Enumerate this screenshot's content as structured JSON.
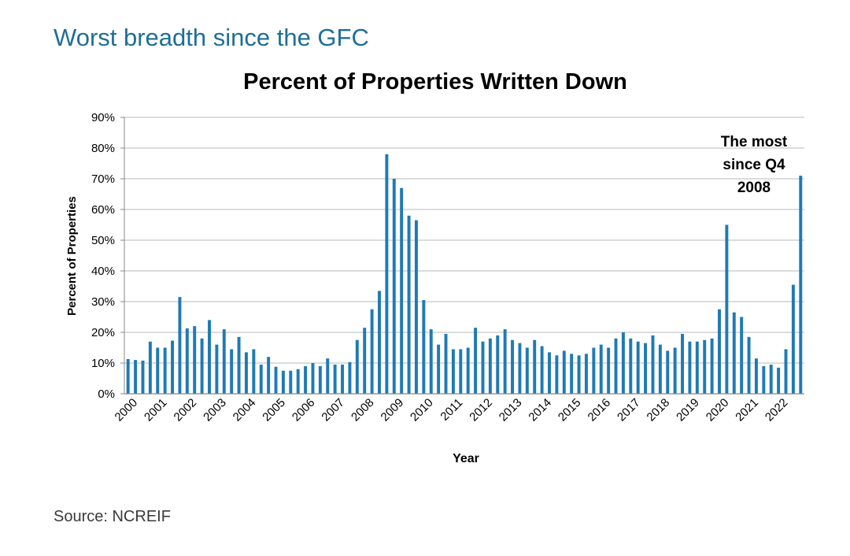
{
  "page": {
    "headline": "Worst breadth since the GFC",
    "source": "Source: NCREIF",
    "bar_color": "#1f7ab5",
    "headline_color": "#1f6e96"
  },
  "chart_data": {
    "type": "bar",
    "title": "Percent of Properties Written Down",
    "xlabel": "Year",
    "ylabel": "Percent of Properties",
    "ylim": [
      0,
      90
    ],
    "yticks": [
      "0%",
      "10%",
      "20%",
      "30%",
      "40%",
      "50%",
      "60%",
      "70%",
      "80%",
      "90%"
    ],
    "year_labels": [
      "2000",
      "2001",
      "2002",
      "2003",
      "2004",
      "2005",
      "2006",
      "2007",
      "2008",
      "2009",
      "2010",
      "2011",
      "2012",
      "2013",
      "2014",
      "2015",
      "2016",
      "2017",
      "2018",
      "2019",
      "2020",
      "2021",
      "2022"
    ],
    "annotation": [
      "The most",
      "since Q4",
      "2008"
    ],
    "series": [
      {
        "name": "Percent of Properties Written Down",
        "values": [
          11.3,
          11,
          10.8,
          17,
          15,
          15,
          17.3,
          31.5,
          21.3,
          22,
          18,
          24,
          16,
          21,
          14.5,
          18.5,
          13.5,
          14.5,
          9.5,
          12,
          8.8,
          7.5,
          7.5,
          8,
          9,
          10,
          9,
          11.5,
          9.5,
          9.5,
          10.3,
          17.5,
          21.5,
          27.5,
          33.5,
          78,
          70,
          67,
          58,
          56.5,
          30.5,
          21,
          16,
          19.5,
          14.5,
          14.5,
          15,
          21.5,
          17,
          18,
          19,
          21,
          17.5,
          16.5,
          15,
          17.5,
          15.5,
          13.5,
          12.5,
          14,
          13,
          12.5,
          13,
          15,
          16,
          15,
          18,
          20,
          18,
          17,
          16.5,
          19,
          16,
          14,
          15,
          19.5,
          17,
          17,
          17.5,
          18,
          27.5,
          55,
          26.5,
          25,
          18.5,
          11.5,
          9,
          9.5,
          8.5,
          14.5,
          35.5,
          71
        ]
      }
    ]
  }
}
